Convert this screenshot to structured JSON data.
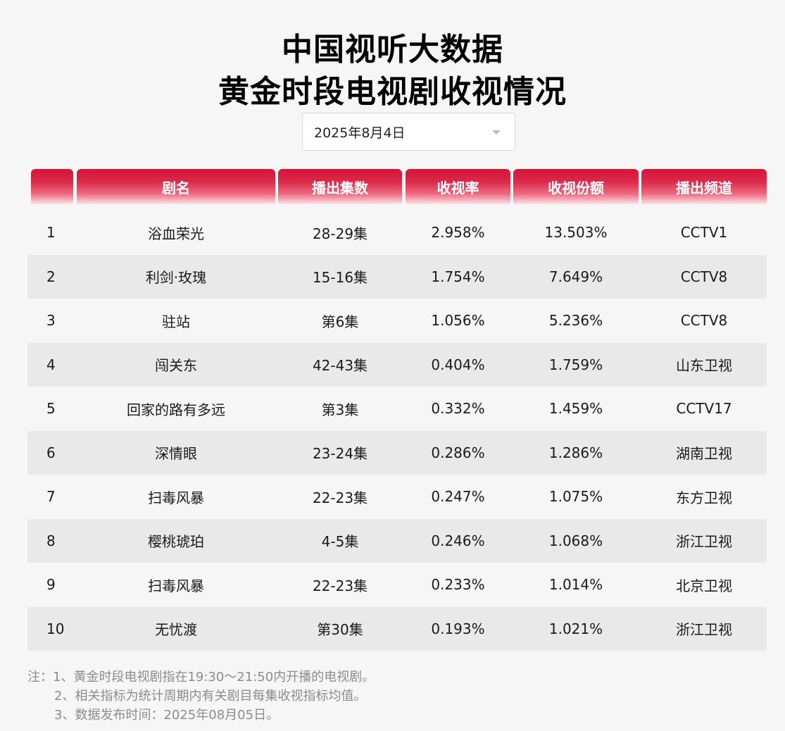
{
  "title_line1": "中国视听大数据",
  "title_line2": "黄金时段电视剧收视情况",
  "date_select": {
    "value": "2025年8月4日"
  },
  "table": {
    "headers": [
      "",
      "剧名",
      "播出集数",
      "收视率",
      "收视份额",
      "播出频道"
    ],
    "rows": [
      [
        "1",
        "浴血荣光",
        "28-29集",
        "2.958%",
        "13.503%",
        "CCTV1"
      ],
      [
        "2",
        "利剑·玫瑰",
        "15-16集",
        "1.754%",
        "7.649%",
        "CCTV8"
      ],
      [
        "3",
        "驻站",
        "第6集",
        "1.056%",
        "5.236%",
        "CCTV8"
      ],
      [
        "4",
        "闯关东",
        "42-43集",
        "0.404%",
        "1.759%",
        "山东卫视"
      ],
      [
        "5",
        "回家的路有多远",
        "第3集",
        "0.332%",
        "1.459%",
        "CCTV17"
      ],
      [
        "6",
        "深情眼",
        "23-24集",
        "0.286%",
        "1.286%",
        "湖南卫视"
      ],
      [
        "7",
        "扫毒风暴",
        "22-23集",
        "0.247%",
        "1.075%",
        "东方卫视"
      ],
      [
        "8",
        "樱桃琥珀",
        "4-5集",
        "0.246%",
        "1.068%",
        "浙江卫视"
      ],
      [
        "9",
        "扫毒风暴",
        "22-23集",
        "0.233%",
        "1.014%",
        "北京卫视"
      ],
      [
        "10",
        "无忧渡",
        "第30集",
        "0.193%",
        "1.021%",
        "浙江卫视"
      ]
    ]
  },
  "notes": [
    "注：1、黄金时段电视剧指在19:30～21:50内开播的电视剧。",
    "2、相关指标为统计周期内有关剧目每集收视指标均值。",
    "3、数据发布时间：2025年08月05日。"
  ],
  "colors": {
    "header_red": "#d2163a",
    "row_alt": "#e9e9e9",
    "background": "#f6f6f6"
  }
}
